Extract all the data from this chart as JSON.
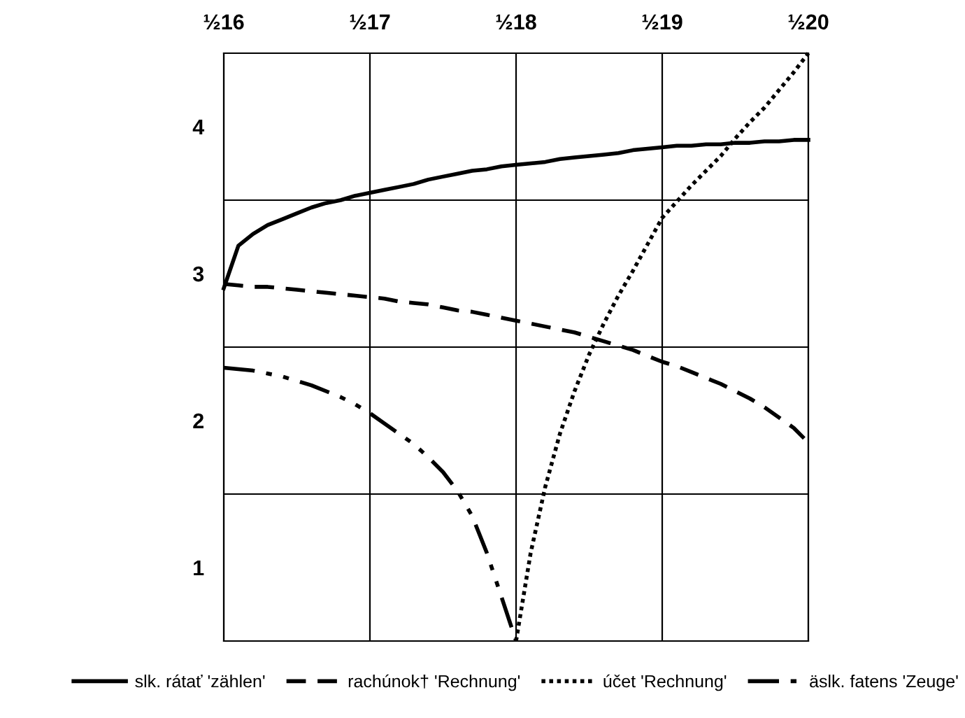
{
  "chart_data": {
    "type": "line",
    "categories": [
      "½16",
      null,
      null,
      null,
      null,
      null,
      null,
      null,
      null,
      null,
      "½17",
      null,
      null,
      null,
      null,
      null,
      null,
      null,
      null,
      null,
      "½18",
      null,
      null,
      null,
      null,
      null,
      null,
      null,
      null,
      null,
      "½19",
      null,
      null,
      null,
      null,
      null,
      null,
      null,
      null,
      null,
      "½20"
    ],
    "ylim": [
      0.5,
      4.5
    ],
    "yticks": [
      1,
      2,
      3,
      4
    ],
    "grid": "x",
    "ref_lines": [
      {
        "axis": "y",
        "value": 1.5,
        "color": "#000000"
      },
      {
        "axis": "y",
        "value": 2.5,
        "color": "#000000"
      },
      {
        "axis": "y",
        "value": 3.5,
        "color": "#000000"
      }
    ],
    "legend": "bottom",
    "marker": "none",
    "series": [
      {
        "name": "slk. rátať 'zählen'",
        "color": "#000000",
        "line_style": "solid",
        "values": [
          2.9,
          3.19,
          3.27,
          3.33,
          3.37,
          3.41,
          3.45,
          3.48,
          3.5,
          3.53,
          3.55,
          3.57,
          3.59,
          3.61,
          3.64,
          3.66,
          3.68,
          3.7,
          3.71,
          3.73,
          3.74,
          3.75,
          3.76,
          3.78,
          3.79,
          3.8,
          3.81,
          3.82,
          3.84,
          3.85,
          3.86,
          3.87,
          3.87,
          3.88,
          3.88,
          3.89,
          3.89,
          3.9,
          3.9,
          3.91,
          3.91
        ]
      },
      {
        "name": "rachúnok† 'Rechnung'",
        "color": "#000000",
        "line_style": "dashed",
        "values": [
          2.93,
          2.92,
          2.91,
          2.91,
          2.9,
          2.89,
          2.88,
          2.87,
          2.86,
          2.85,
          2.84,
          2.83,
          2.81,
          2.8,
          2.79,
          2.77,
          2.75,
          2.74,
          2.72,
          2.7,
          2.68,
          2.66,
          2.64,
          2.62,
          2.6,
          2.57,
          2.54,
          2.51,
          2.48,
          2.44,
          2.4,
          2.37,
          2.33,
          2.29,
          2.25,
          2.2,
          2.15,
          2.09,
          2.02,
          1.95,
          1.85
        ]
      },
      {
        "name": "účet 'Rechnung'",
        "color": "#000000",
        "line_style": "dotted",
        "values": [
          null,
          null,
          null,
          null,
          null,
          null,
          null,
          null,
          null,
          null,
          null,
          null,
          null,
          null,
          null,
          null,
          null,
          null,
          null,
          null,
          0.5,
          1.1,
          1.55,
          1.91,
          2.2,
          2.45,
          2.66,
          2.85,
          3.02,
          3.2,
          3.38,
          3.49,
          3.6,
          3.7,
          3.8,
          3.92,
          4.03,
          4.13,
          4.25,
          4.37,
          4.5
        ]
      },
      {
        "name": "äslk. fatens 'Zeuge'",
        "color": "#000000",
        "line_style": "dashdotdot",
        "values": [
          2.36,
          2.35,
          2.34,
          2.32,
          2.3,
          2.27,
          2.24,
          2.2,
          2.16,
          2.11,
          2.05,
          1.98,
          1.91,
          1.84,
          1.75,
          1.65,
          1.52,
          1.35,
          1.1,
          0.8,
          0.5,
          null,
          null,
          null,
          null,
          null,
          null,
          null,
          null,
          null,
          null,
          null,
          null,
          null,
          null,
          null,
          null,
          null,
          null,
          null,
          null
        ]
      }
    ]
  }
}
